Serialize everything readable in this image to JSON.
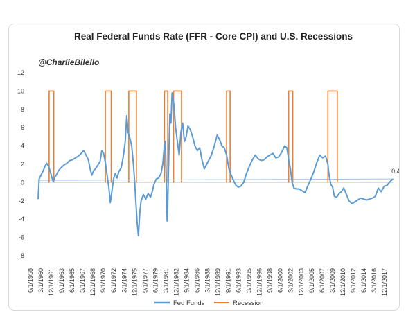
{
  "chart_data": {
    "type": "line",
    "title": "Real Federal Funds Rate (FFR - Core CPI) and U.S. Recessions",
    "annotation": "@CharlieBilello",
    "end_label": "0.4",
    "ylim": [
      -8,
      12
    ],
    "yticks": [
      "12",
      "10",
      "8",
      "6",
      "4",
      "2",
      "0",
      "-2",
      "-4",
      "-6",
      "-8"
    ],
    "xlim": [
      1958.42,
      2019.1
    ],
    "xticks": [
      "6/1/1958",
      "3/1/1960",
      "12/1/1961",
      "9/1/1963",
      "6/1/1965",
      "3/1/1967",
      "12/1/1968",
      "9/1/1970",
      "6/1/1972",
      "3/1/1974",
      "12/1/1975",
      "9/1/1977",
      "6/1/1979",
      "3/1/1981",
      "12/1/1982",
      "9/1/1984",
      "6/1/1986",
      "3/1/1988",
      "12/1/1989",
      "9/1/1991",
      "6/1/1993",
      "3/1/1995",
      "12/1/1996",
      "9/1/1998",
      "6/1/2000",
      "3/1/2002",
      "12/1/2003",
      "9/1/2005",
      "6/1/2007",
      "3/1/2009",
      "12/1/2010",
      "9/1/2012",
      "6/1/2014",
      "3/1/2016",
      "12/1/2017"
    ],
    "legend_position": "bottom",
    "colors": {
      "fed_funds": "#5b9bd5",
      "recession": "#ed7d31",
      "trend": "#9dc3e6"
    },
    "series": [
      {
        "name": "Fed Funds",
        "points": [
          [
            1958.42,
            -1.8
          ],
          [
            1958.6,
            0.4
          ],
          [
            1958.9,
            0.8
          ],
          [
            1959.3,
            1.3
          ],
          [
            1959.6,
            1.8
          ],
          [
            1959.9,
            2.1
          ],
          [
            1960.2,
            1.8
          ],
          [
            1960.5,
            1.2
          ],
          [
            1960.8,
            0.5
          ],
          [
            1961.0,
            0.1
          ],
          [
            1961.3,
            0.6
          ],
          [
            1961.6,
            0.9
          ],
          [
            1961.9,
            1.3
          ],
          [
            1962.3,
            1.6
          ],
          [
            1962.8,
            1.9
          ],
          [
            1963.3,
            2.1
          ],
          [
            1963.8,
            2.4
          ],
          [
            1964.3,
            2.5
          ],
          [
            1964.8,
            2.7
          ],
          [
            1965.3,
            2.9
          ],
          [
            1965.8,
            3.2
          ],
          [
            1966.2,
            3.5
          ],
          [
            1966.6,
            3.0
          ],
          [
            1967.0,
            2.5
          ],
          [
            1967.3,
            1.5
          ],
          [
            1967.6,
            0.8
          ],
          [
            1967.9,
            1.3
          ],
          [
            1968.2,
            1.5
          ],
          [
            1968.6,
            1.9
          ],
          [
            1969.0,
            2.3
          ],
          [
            1969.3,
            3.5
          ],
          [
            1969.6,
            3.2
          ],
          [
            1969.9,
            2.2
          ],
          [
            1970.2,
            0.8
          ],
          [
            1970.5,
            -0.5
          ],
          [
            1970.75,
            -2.2
          ],
          [
            1971.0,
            -1.0
          ],
          [
            1971.3,
            0.4
          ],
          [
            1971.6,
            1.0
          ],
          [
            1971.9,
            0.5
          ],
          [
            1972.2,
            1.2
          ],
          [
            1972.6,
            1.6
          ],
          [
            1973.0,
            3.0
          ],
          [
            1973.3,
            4.5
          ],
          [
            1973.55,
            7.3
          ],
          [
            1973.8,
            5.5
          ],
          [
            1974.1,
            4.8
          ],
          [
            1974.4,
            4.0
          ],
          [
            1974.7,
            2.0
          ],
          [
            1974.9,
            0.2
          ],
          [
            1975.1,
            -2.0
          ],
          [
            1975.35,
            -4.5
          ],
          [
            1975.55,
            -5.8
          ],
          [
            1975.8,
            -3.2
          ],
          [
            1976.0,
            -2.0
          ],
          [
            1976.4,
            -1.3
          ],
          [
            1976.8,
            -1.8
          ],
          [
            1977.2,
            -1.2
          ],
          [
            1977.6,
            -1.6
          ],
          [
            1977.9,
            -1.0
          ],
          [
            1978.2,
            -0.2
          ],
          [
            1978.6,
            0.4
          ],
          [
            1979.0,
            0.5
          ],
          [
            1979.4,
            1.0
          ],
          [
            1979.7,
            2.0
          ],
          [
            1979.95,
            3.8
          ],
          [
            1980.15,
            4.5
          ],
          [
            1980.3,
            0.5
          ],
          [
            1980.45,
            -4.2
          ],
          [
            1980.55,
            -2.5
          ],
          [
            1980.7,
            2.0
          ],
          [
            1980.9,
            7.5
          ],
          [
            1981.1,
            6.5
          ],
          [
            1981.3,
            9.8
          ],
          [
            1981.6,
            8.5
          ],
          [
            1981.9,
            6.0
          ],
          [
            1982.2,
            4.5
          ],
          [
            1982.5,
            3.0
          ],
          [
            1982.8,
            5.5
          ],
          [
            1983.1,
            6.5
          ],
          [
            1983.4,
            4.5
          ],
          [
            1983.7,
            5.0
          ],
          [
            1984.0,
            6.2
          ],
          [
            1984.4,
            5.8
          ],
          [
            1984.8,
            5.0
          ],
          [
            1985.2,
            4.0
          ],
          [
            1985.6,
            3.5
          ],
          [
            1986.0,
            3.8
          ],
          [
            1986.4,
            2.5
          ],
          [
            1986.8,
            1.5
          ],
          [
            1987.2,
            2.0
          ],
          [
            1987.6,
            2.5
          ],
          [
            1988.0,
            3.0
          ],
          [
            1988.5,
            4.0
          ],
          [
            1989.0,
            5.2
          ],
          [
            1989.4,
            4.7
          ],
          [
            1989.8,
            4.0
          ],
          [
            1990.2,
            3.8
          ],
          [
            1990.6,
            3.0
          ],
          [
            1991.0,
            1.5
          ],
          [
            1991.4,
            0.8
          ],
          [
            1991.8,
            0.2
          ],
          [
            1992.2,
            -0.3
          ],
          [
            1992.6,
            -0.5
          ],
          [
            1993.0,
            -0.4
          ],
          [
            1993.5,
            0.0
          ],
          [
            1994.0,
            1.0
          ],
          [
            1994.5,
            1.8
          ],
          [
            1995.0,
            2.5
          ],
          [
            1995.5,
            3.0
          ],
          [
            1996.0,
            2.6
          ],
          [
            1996.5,
            2.4
          ],
          [
            1997.0,
            2.5
          ],
          [
            1997.5,
            2.8
          ],
          [
            1998.0,
            3.0
          ],
          [
            1998.5,
            3.2
          ],
          [
            1999.0,
            2.7
          ],
          [
            1999.5,
            2.8
          ],
          [
            2000.0,
            3.3
          ],
          [
            2000.5,
            4.0
          ],
          [
            2000.9,
            3.8
          ],
          [
            2001.2,
            2.5
          ],
          [
            2001.5,
            1.5
          ],
          [
            2001.8,
            0.0
          ],
          [
            2002.1,
            -0.6
          ],
          [
            2002.5,
            -0.7
          ],
          [
            2003.0,
            -0.7
          ],
          [
            2003.5,
            -0.9
          ],
          [
            2004.0,
            -1.1
          ],
          [
            2004.5,
            -0.3
          ],
          [
            2005.0,
            0.4
          ],
          [
            2005.5,
            1.2
          ],
          [
            2006.0,
            2.2
          ],
          [
            2006.5,
            3.0
          ],
          [
            2007.0,
            2.7
          ],
          [
            2007.5,
            2.9
          ],
          [
            2007.9,
            2.0
          ],
          [
            2008.1,
            0.8
          ],
          [
            2008.4,
            -0.2
          ],
          [
            2008.7,
            -0.5
          ],
          [
            2009.0,
            -1.5
          ],
          [
            2009.4,
            -1.6
          ],
          [
            2009.8,
            -1.2
          ],
          [
            2010.2,
            -1.0
          ],
          [
            2010.6,
            -0.6
          ],
          [
            2011.0,
            -1.2
          ],
          [
            2011.5,
            -2.0
          ],
          [
            2012.0,
            -2.3
          ],
          [
            2012.5,
            -2.1
          ],
          [
            2013.0,
            -1.9
          ],
          [
            2013.5,
            -1.7
          ],
          [
            2014.0,
            -1.8
          ],
          [
            2014.5,
            -1.9
          ],
          [
            2015.0,
            -1.8
          ],
          [
            2015.5,
            -1.7
          ],
          [
            2016.0,
            -1.5
          ],
          [
            2016.5,
            -0.6
          ],
          [
            2017.0,
            -1.0
          ],
          [
            2017.5,
            -0.4
          ],
          [
            2018.0,
            -0.3
          ],
          [
            2018.5,
            0.1
          ],
          [
            2019.0,
            0.4
          ]
        ]
      },
      {
        "name": "Recession",
        "periods": [
          [
            1960.3,
            1961.1
          ],
          [
            1969.9,
            1970.9
          ],
          [
            1973.9,
            1975.2
          ],
          [
            1980.0,
            1980.55
          ],
          [
            1981.55,
            1982.9
          ],
          [
            1990.6,
            1991.2
          ],
          [
            2001.2,
            2001.9
          ],
          [
            2007.9,
            2009.5
          ]
        ],
        "on_value": 10,
        "off_value": 0
      }
    ]
  }
}
